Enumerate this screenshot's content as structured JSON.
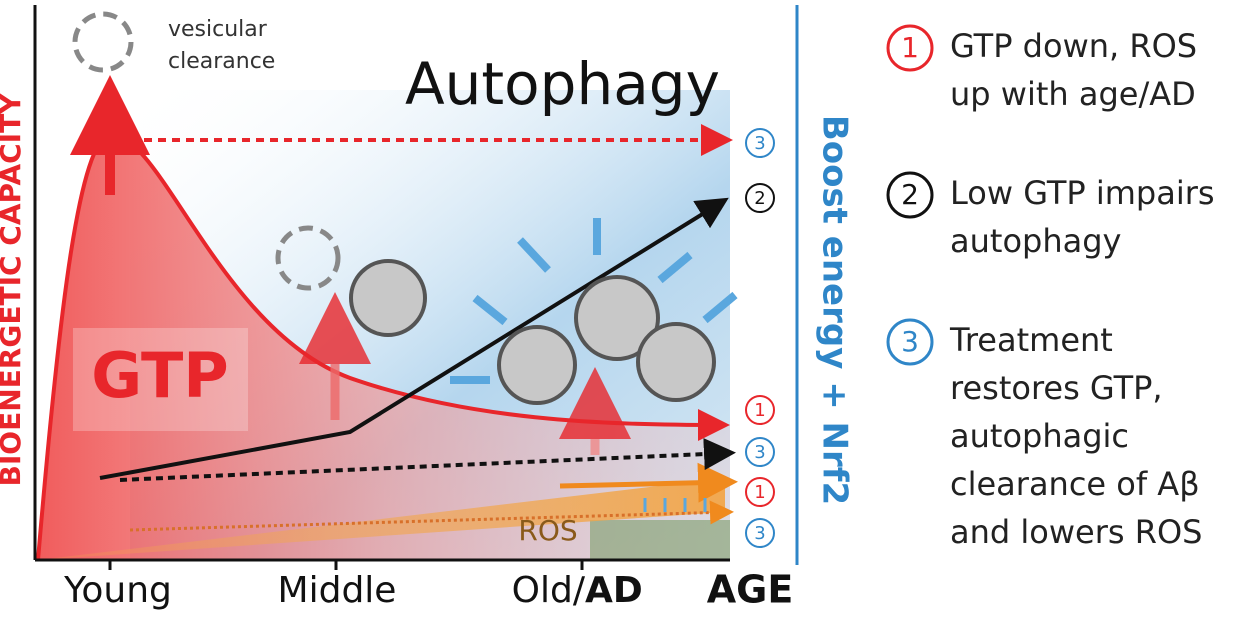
{
  "axis": {
    "y_label": "BIOENERGETIC CAPACITY",
    "young": "Young",
    "middle": "Middle",
    "old": "Old/",
    "ad": "AD",
    "x_title": "AGE"
  },
  "labels": {
    "vesicular": [
      "vesicular",
      "clearance"
    ],
    "autophagy": "Autophagy",
    "gtp": "GTP",
    "ros": "ROS",
    "treatment": "Boost energy + Nrf2"
  },
  "markers": [
    "3",
    "2",
    "1",
    "3",
    "1",
    "3"
  ],
  "legend": [
    {
      "number": "1",
      "lines": [
        "GTP down, ROS",
        "up with age/AD"
      ]
    },
    {
      "number": "2",
      "lines": [
        "Low GTP impairs",
        "autophagy"
      ]
    },
    {
      "number": "3",
      "lines": [
        "Treatment",
        "restores GTP,",
        "autophagic",
        "clearance of Aβ",
        "and lowers ROS"
      ]
    }
  ]
}
